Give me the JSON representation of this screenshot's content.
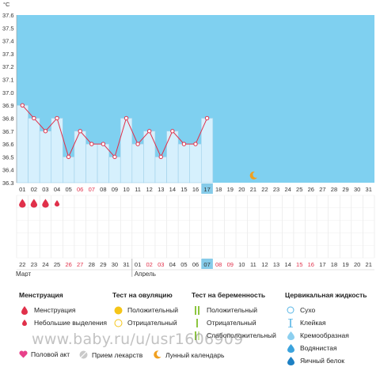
{
  "chart_data": {
    "type": "line",
    "unit": "°C",
    "ylim": [
      36.3,
      37.6
    ],
    "y_ticks": [
      "36.3",
      "36.4",
      "36.5",
      "36.6",
      "36.7",
      "36.8",
      "36.9",
      "37.0",
      "37.1",
      "37.2",
      "37.3",
      "37.4",
      "37.5",
      "37.6"
    ],
    "x_top_labels": [
      "01",
      "02",
      "03",
      "04",
      "05",
      "06",
      "07",
      "08",
      "09",
      "10",
      "11",
      "12",
      "13",
      "14",
      "15",
      "16",
      "17",
      "18",
      "19",
      "20",
      "21",
      "22",
      "23",
      "24",
      "25",
      "26",
      "27",
      "28",
      "29",
      "30",
      "31"
    ],
    "x_top_red": [
      "06",
      "07"
    ],
    "x_top_highlight": "17",
    "x_bottom_labels": [
      "22",
      "23",
      "24",
      "25",
      "26",
      "27",
      "28",
      "29",
      "30",
      "31",
      "01",
      "02",
      "03",
      "04",
      "05",
      "06",
      "07",
      "08",
      "09",
      "10",
      "11",
      "12",
      "13",
      "14",
      "15",
      "16",
      "17",
      "18",
      "19",
      "20",
      "21"
    ],
    "x_bottom_red": [
      4,
      5,
      11,
      12,
      17,
      18,
      24,
      25
    ],
    "x_bottom_highlight": 16,
    "month_left": "Март",
    "month_right": "Апрель",
    "values": [
      36.9,
      36.8,
      36.7,
      36.8,
      36.5,
      36.7,
      36.6,
      36.6,
      36.5,
      36.8,
      36.6,
      36.7,
      36.5,
      36.7,
      36.6,
      36.6,
      36.8
    ],
    "menstruation": [
      "big",
      "big",
      "big",
      "small"
    ],
    "moon_day": 21
  },
  "legend": {
    "menstruation": {
      "header": "Менструация",
      "items": [
        "Менструация",
        "Небольшие выделения"
      ]
    },
    "ovulation": {
      "header": "Тест на овуляцию",
      "items": [
        "Положительный",
        "Отрицательный"
      ]
    },
    "pregnancy": {
      "header": "Тест на беременность",
      "items": [
        "Положительный",
        "Отрицательный",
        "Слабоположительный"
      ]
    },
    "cervical": {
      "header": "Цервикальная жидкость",
      "items": [
        "Сухо",
        "Клейкая",
        "Кремообразная",
        "Водянистая",
        "Яичный белок"
      ]
    }
  },
  "bottom": {
    "intercourse": "Половой акт",
    "medication": "Прием лекарств",
    "lunar": "Лунный календарь"
  },
  "watermark": "www.baby.ru/u/usr1606909",
  "colors": {
    "sky": "#7fd0f0",
    "bar": "#d6f0fd",
    "bar_stroke": "#9fd0ea",
    "line": "#e0304a",
    "grid": "#e4e4e4",
    "highlight": "#85cbe9",
    "red_text": "#e0304a"
  }
}
